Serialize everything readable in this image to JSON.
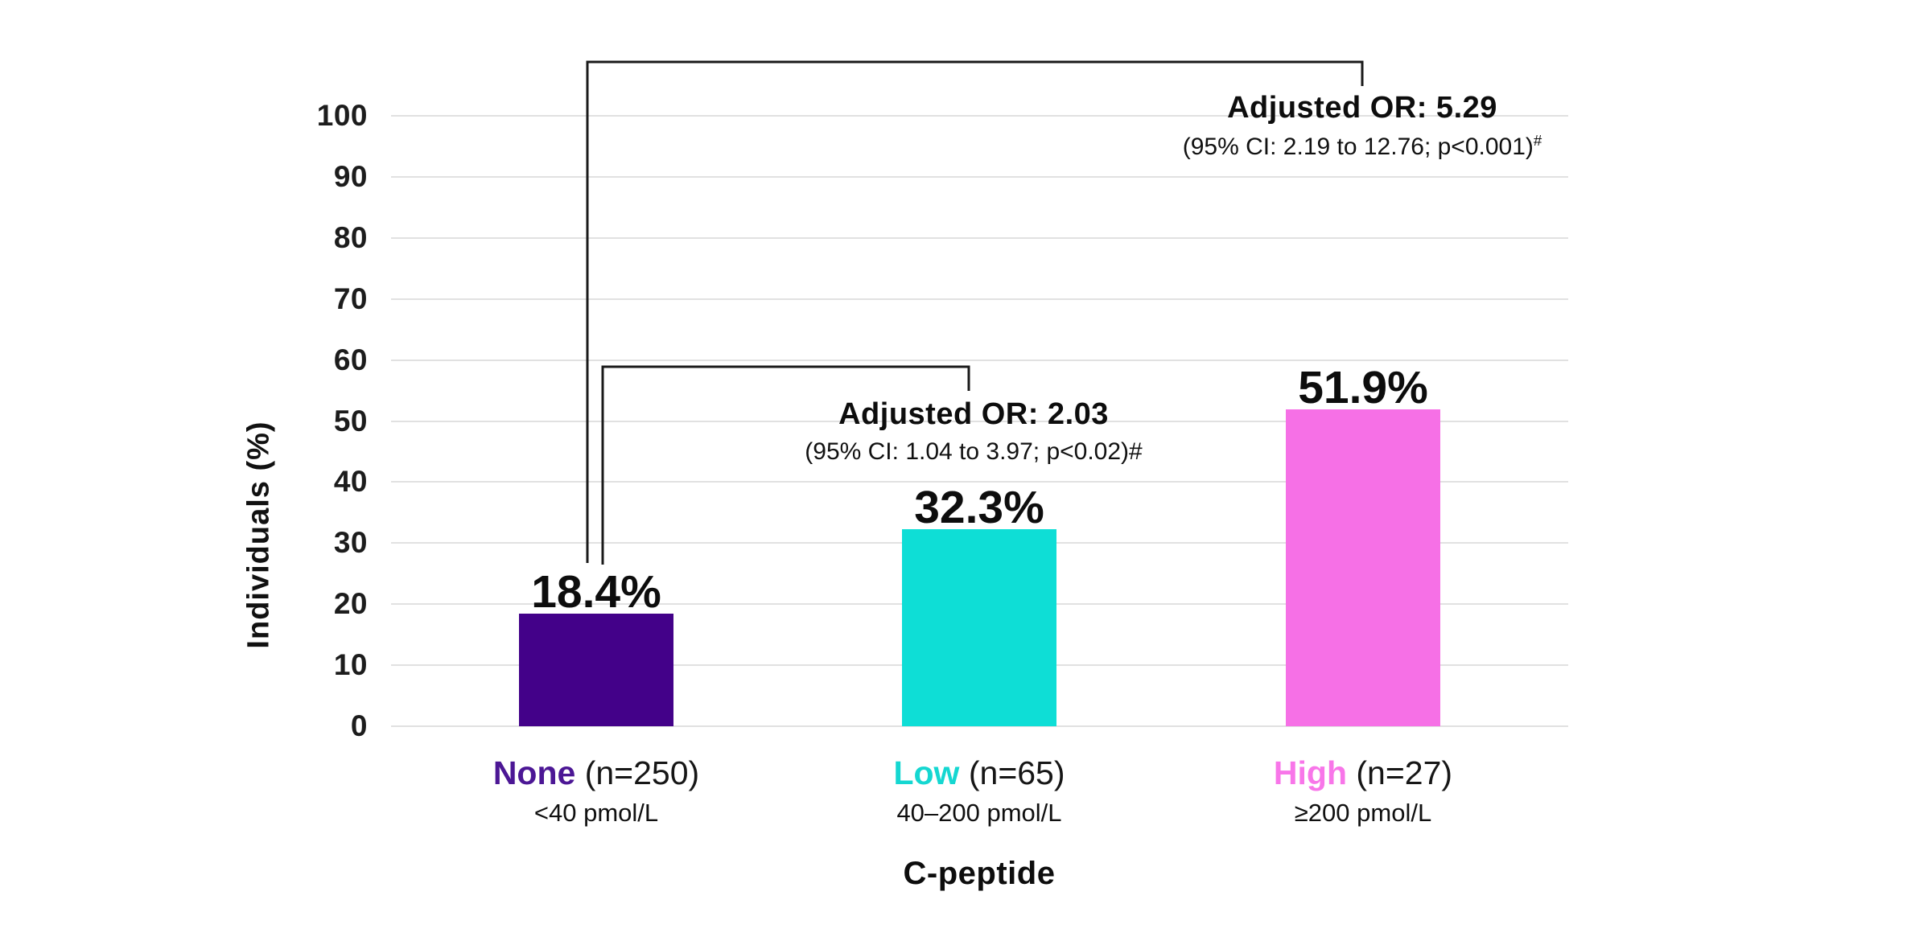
{
  "chart_data": {
    "type": "bar",
    "title": "",
    "ylabel": "Individuals (%)",
    "xlabel": "C-peptide",
    "ylim": [
      0,
      100
    ],
    "yticks": [
      0,
      10,
      20,
      30,
      40,
      50,
      60,
      70,
      80,
      90,
      100
    ],
    "grid": true,
    "legend": "none",
    "categories": [
      {
        "name": "None",
        "n_label": "(n=250)",
        "range": "<40 pmol/L",
        "value": 18.4,
        "value_label": "18.4%",
        "bar_color": "#430189",
        "label_color": "#4C1795"
      },
      {
        "name": "Low",
        "n_label": "(n=65)",
        "range": "40–200 pmol/L",
        "value": 32.3,
        "value_label": "32.3%",
        "bar_color": "#0EDED6",
        "label_color": "#15D7D1"
      },
      {
        "name": "High",
        "n_label": "(n=27)",
        "range": "≥200 pmol/L",
        "value": 51.9,
        "value_label": "51.9%",
        "bar_color": "#F670E6",
        "label_color": "#F876E9"
      }
    ],
    "annotations": [
      {
        "title": "Adjusted OR: 5.29",
        "detail": "(95% CI: 2.19 to 12.76; p<0.001)",
        "suffix": "#",
        "suffix_style": "superscript",
        "compares": [
          "None",
          "High"
        ]
      },
      {
        "title": "Adjusted OR: 2.03",
        "detail": "(95% CI: 1.04 to 3.97; p<0.02)",
        "suffix": "#",
        "suffix_style": "inline",
        "compares": [
          "None",
          "Low"
        ]
      }
    ],
    "colors": {
      "gridline": "#e1e1e1",
      "bracket": "#1a1a1a",
      "text": "#0d0d0d"
    }
  }
}
